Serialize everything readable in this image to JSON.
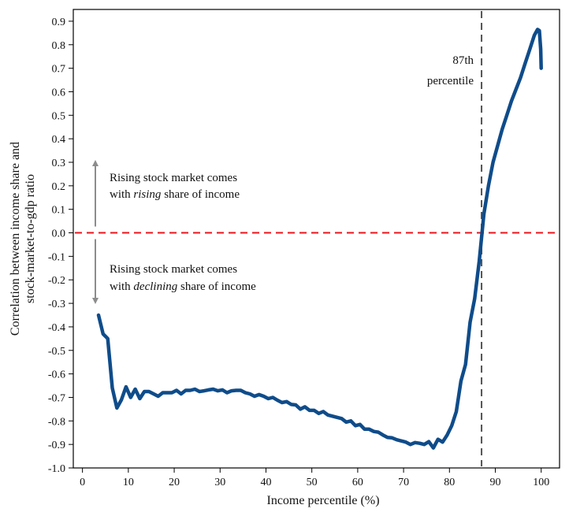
{
  "colors": {
    "series": "#0f4c8a",
    "zero_line": "#e8141b",
    "marker_line": "#555555",
    "arrow": "#8c8c8c",
    "axis": "#000000"
  },
  "chart_data": {
    "type": "line",
    "xlabel": "Income percentile (%)",
    "ylabel_lines": [
      "Correlation between income share and",
      "stock-market-to-gdp ratio"
    ],
    "xlim": [
      -2,
      104
    ],
    "ylim": [
      -1.0,
      0.95
    ],
    "xticks": [
      0,
      10,
      20,
      30,
      40,
      50,
      60,
      70,
      80,
      90,
      100
    ],
    "yticks": [
      -1.0,
      -0.9,
      -0.8,
      -0.7,
      -0.6,
      -0.5,
      -0.4,
      -0.3,
      -0.2,
      -0.1,
      0.0,
      0.1,
      0.2,
      0.3,
      0.4,
      0.5,
      0.6,
      0.7,
      0.8,
      0.9
    ],
    "ytick_labels": [
      "-1.0",
      "-0.9",
      "-0.8",
      "-0.7",
      "-0.6",
      "-0.5",
      "-0.4",
      "-0.3",
      "-0.2",
      "-0.1",
      "0.0",
      "0.1",
      "0.2",
      "0.3",
      "0.4",
      "0.5",
      "0.6",
      "0.7",
      "0.8",
      "0.9"
    ],
    "grid": false,
    "reference_lines": {
      "horizontal_y": 0.0,
      "vertical_x": 87
    },
    "series": [
      {
        "x": [
          3.5,
          4.5,
          5.5,
          6.5,
          7.5,
          8.5,
          9.5,
          10.5,
          11.5,
          12.5,
          13.5,
          14.5,
          15.5,
          16.5,
          17.5,
          18.5,
          19.5,
          20.5,
          21.5,
          22.5,
          23.5,
          24.5,
          25.5,
          26.5,
          27.5,
          28.5,
          29.5,
          30.5,
          31.5,
          32.5,
          33.5,
          34.5,
          35.5,
          36.5,
          37.5,
          38.5,
          39.5,
          40.5,
          41.5,
          42.5,
          43.5,
          44.5,
          45.5,
          46.5,
          47.5,
          48.5,
          49.5,
          50.5,
          51.5,
          52.5,
          53.5,
          54.5,
          55.5,
          56.5,
          57.5,
          58.5,
          59.5,
          60.5,
          61.5,
          62.5,
          63.5,
          64.5,
          65.5,
          66.5,
          67.5,
          68.5,
          69.5,
          70.5,
          71.5,
          72.5,
          73.5,
          74.5,
          75.5,
          76.5,
          77.5,
          78.5,
          79.5,
          80.5,
          81.5,
          82.5,
          83.5,
          84.5,
          85.5,
          86.5,
          87.5,
          88.5,
          89.5,
          90.5,
          91.5,
          92.5,
          93.5,
          94.5,
          95.5,
          96.5,
          97.5,
          98.5,
          99.2,
          99.6,
          99.9,
          100.0
        ],
        "y": [
          -0.35,
          -0.43,
          -0.45,
          -0.66,
          -0.745,
          -0.71,
          -0.655,
          -0.7,
          -0.665,
          -0.705,
          -0.675,
          -0.675,
          -0.685,
          -0.695,
          -0.68,
          -0.68,
          -0.68,
          -0.67,
          -0.685,
          -0.67,
          -0.67,
          -0.665,
          -0.675,
          -0.672,
          -0.668,
          -0.665,
          -0.672,
          -0.668,
          -0.68,
          -0.672,
          -0.67,
          -0.67,
          -0.68,
          -0.685,
          -0.695,
          -0.688,
          -0.695,
          -0.705,
          -0.7,
          -0.712,
          -0.722,
          -0.718,
          -0.73,
          -0.732,
          -0.75,
          -0.74,
          -0.755,
          -0.755,
          -0.768,
          -0.76,
          -0.775,
          -0.78,
          -0.785,
          -0.79,
          -0.805,
          -0.8,
          -0.82,
          -0.815,
          -0.835,
          -0.835,
          -0.845,
          -0.848,
          -0.86,
          -0.87,
          -0.872,
          -0.88,
          -0.885,
          -0.89,
          -0.9,
          -0.892,
          -0.895,
          -0.9,
          -0.888,
          -0.915,
          -0.878,
          -0.89,
          -0.86,
          -0.82,
          -0.76,
          -0.63,
          -0.56,
          -0.38,
          -0.28,
          -0.12,
          0.08,
          0.2,
          0.3,
          0.37,
          0.44,
          0.5,
          0.56,
          0.61,
          0.66,
          0.72,
          0.78,
          0.84,
          0.865,
          0.86,
          0.78,
          0.7
        ]
      }
    ],
    "annotations": {
      "marker_label_line1": "87th",
      "marker_label_line2": "percentile",
      "upper_line1": "Rising stock market comes",
      "upper_line2_pre": "with ",
      "upper_line2_em": "rising",
      "upper_line2_post": " share of income",
      "lower_line1": "Rising stock market comes",
      "lower_line2_pre": "with ",
      "lower_line2_em": "declining",
      "lower_line2_post": " share of income"
    }
  }
}
